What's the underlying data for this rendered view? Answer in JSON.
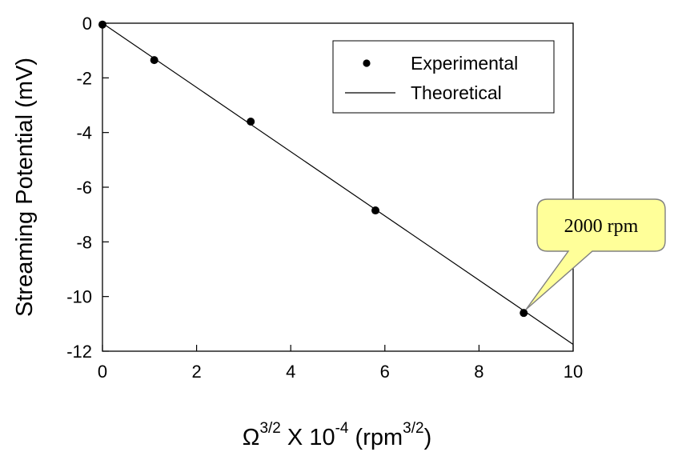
{
  "chart_data": {
    "type": "scatter",
    "title": "",
    "ylabel": "Streaming Potential (mV)",
    "xlabel": {
      "omega": "Ω",
      "exp1": "3/2",
      "mid": " X 10",
      "exp2": "-4",
      "unit_open": " (rpm",
      "exp3": "3/2",
      "unit_close": ")"
    },
    "xlim": [
      0,
      10
    ],
    "ylim": [
      -12,
      0
    ],
    "xticks": [
      "0",
      "2",
      "4",
      "6",
      "8",
      "10"
    ],
    "yticks": [
      "0",
      "-2",
      "-4",
      "-6",
      "-8",
      "-10",
      "-12"
    ],
    "grid": false,
    "legend_position": "top-right",
    "series": [
      {
        "name": "Experimental",
        "kind": "points",
        "x": [
          0,
          1.1,
          3.15,
          5.8,
          8.95
        ],
        "y": [
          -0.05,
          -1.35,
          -3.6,
          -6.85,
          -10.6
        ],
        "color": "#000000"
      },
      {
        "name": "Theoretical",
        "kind": "line",
        "x": [
          0,
          10
        ],
        "y": [
          0,
          -11.75
        ],
        "color": "#000000"
      }
    ],
    "annotation": {
      "text": "2000 rpm",
      "target_x": 8.95,
      "target_y": -10.6,
      "fill": "#ffff99",
      "stroke": "#808080"
    }
  }
}
